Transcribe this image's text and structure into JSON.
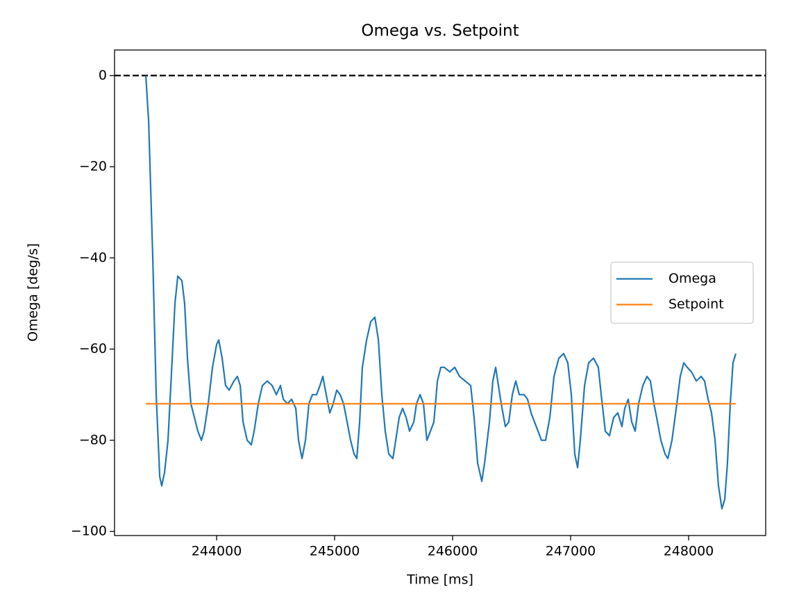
{
  "chart_data": {
    "type": "line",
    "title": "Omega vs. Setpoint",
    "x_label": "Time [ms]",
    "y_label": "Omega [deg/s]",
    "xlim": [
      243135,
      248653
    ],
    "ylim": [
      -100.9,
      5.6
    ],
    "xticks": [
      244000,
      245000,
      246000,
      247000,
      248000
    ],
    "yticks": [
      {
        "value": -100,
        "label": "−100"
      },
      {
        "value": -80,
        "label": "−80"
      },
      {
        "value": -60,
        "label": "−60"
      },
      {
        "value": -40,
        "label": "−40"
      },
      {
        "value": -20,
        "label": "−20"
      },
      0
    ],
    "legend_loc": "center right",
    "reference_line": {
      "value": 0,
      "color": "#000000",
      "style": "dashed"
    },
    "series": [
      {
        "name": "Omega",
        "color": "#1f77b4",
        "x": [
          243400,
          243424,
          243459,
          243488,
          243518,
          243535,
          243559,
          243588,
          243618,
          243647,
          243671,
          243706,
          243729,
          243753,
          243782,
          243812,
          243841,
          243871,
          243894,
          243929,
          243965,
          244000,
          244018,
          244047,
          244076,
          244106,
          244147,
          244176,
          244200,
          244224,
          244259,
          244294,
          244318,
          244353,
          244388,
          244429,
          244471,
          244506,
          244541,
          244565,
          244600,
          244635,
          244671,
          244694,
          244724,
          244753,
          244782,
          244812,
          244847,
          244876,
          244900,
          244929,
          244959,
          244988,
          245018,
          245047,
          245076,
          245106,
          245135,
          245165,
          245188,
          245212,
          245235,
          245271,
          245306,
          245341,
          245371,
          245400,
          245429,
          245459,
          245494,
          245518,
          245547,
          245576,
          245606,
          245635,
          245671,
          245694,
          245724,
          245753,
          245782,
          245812,
          245841,
          245871,
          245900,
          245929,
          245976,
          246018,
          246059,
          246106,
          246153,
          246182,
          246212,
          246247,
          246271,
          246312,
          246341,
          246365,
          246388,
          246412,
          246447,
          246476,
          246506,
          246535,
          246565,
          246606,
          246635,
          246665,
          246694,
          246724,
          246753,
          246788,
          246824,
          246859,
          246900,
          246941,
          246976,
          247006,
          247035,
          247059,
          247082,
          247118,
          247153,
          247194,
          247235,
          247259,
          247294,
          247329,
          247365,
          247400,
          247435,
          247459,
          247488,
          247518,
          247547,
          247576,
          247612,
          247647,
          247676,
          247706,
          247729,
          247765,
          247800,
          247824,
          247859,
          247900,
          247929,
          247959,
          247988,
          248024,
          248065,
          248106,
          248135,
          248165,
          248194,
          248224,
          248253,
          248282,
          248306,
          248329,
          248353,
          248376,
          248400
        ],
        "values": [
          0,
          -10,
          -40,
          -70,
          -88,
          -90,
          -87,
          -80,
          -65,
          -50,
          -44,
          -45,
          -50,
          -62,
          -72,
          -75,
          -78,
          -80,
          -78,
          -72,
          -64,
          -59,
          -58,
          -62,
          -68,
          -69,
          -67,
          -66,
          -68,
          -76,
          -80,
          -81,
          -78,
          -72,
          -68,
          -67,
          -68,
          -70,
          -68,
          -71,
          -72,
          -71,
          -73,
          -80,
          -84,
          -80,
          -72,
          -70,
          -70,
          -68,
          -66,
          -70,
          -74,
          -72,
          -69,
          -70,
          -72,
          -76,
          -80,
          -83,
          -84,
          -76,
          -64,
          -58,
          -54,
          -53,
          -58,
          -70,
          -78,
          -83,
          -84,
          -80,
          -75,
          -73,
          -75,
          -78,
          -76,
          -72,
          -70,
          -72,
          -80,
          -78,
          -76,
          -67,
          -64,
          -64,
          -65,
          -64,
          -66,
          -67,
          -68,
          -75,
          -85,
          -89,
          -85,
          -76,
          -67,
          -64,
          -68,
          -72,
          -77,
          -76,
          -70,
          -67,
          -70,
          -70,
          -71,
          -74,
          -76,
          -78,
          -80,
          -80,
          -75,
          -66,
          -62,
          -61,
          -63,
          -70,
          -83,
          -86,
          -80,
          -68,
          -63,
          -62,
          -64,
          -70,
          -78,
          -79,
          -75,
          -74,
          -77,
          -73,
          -71,
          -76,
          -78,
          -72,
          -68,
          -66,
          -67,
          -72,
          -75,
          -80,
          -83,
          -84,
          -80,
          -72,
          -66,
          -63,
          -64,
          -65,
          -67,
          -66,
          -67,
          -71,
          -74,
          -80,
          -90,
          -95,
          -93,
          -85,
          -72,
          -63,
          -61
        ]
      },
      {
        "name": "Setpoint",
        "color": "#ff7f0e",
        "x": [
          243400,
          248400
        ],
        "values": [
          -72,
          -72
        ]
      }
    ]
  }
}
